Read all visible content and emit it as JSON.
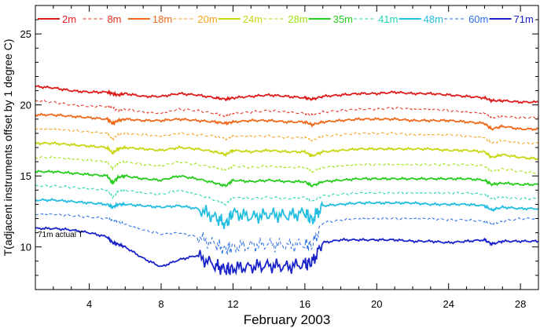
{
  "chart_data": {
    "type": "line",
    "title": "",
    "xlabel": "February 2003",
    "ylabel": "T(adjacent instruments offset by 1 degree C)",
    "xlim": [
      1,
      29
    ],
    "ylim": [
      7,
      27
    ],
    "x_ticks": [
      4,
      8,
      12,
      16,
      20,
      24,
      28
    ],
    "y_ticks": [
      10,
      15,
      20,
      25
    ],
    "grid": false,
    "legend": "top",
    "annotation": "71m actual T",
    "x": [
      1,
      2,
      3,
      4,
      5,
      5.3,
      5.6,
      6,
      7,
      8,
      9,
      10,
      11,
      11.6,
      12,
      13,
      14,
      15,
      16,
      16.4,
      17,
      18,
      19,
      20,
      21,
      22,
      23,
      24,
      25,
      26,
      26.4,
      27,
      28,
      29
    ],
    "series": [
      {
        "name": "2m",
        "color": "#dd1c1c",
        "dashed": false,
        "values": [
          21.3,
          21.2,
          21.0,
          20.9,
          20.9,
          20.8,
          20.7,
          20.8,
          20.6,
          20.6,
          20.8,
          20.7,
          20.5,
          20.4,
          20.5,
          20.6,
          20.7,
          20.6,
          20.5,
          20.4,
          20.6,
          20.7,
          20.8,
          20.8,
          20.9,
          20.8,
          20.8,
          20.7,
          20.6,
          20.5,
          20.3,
          20.3,
          20.2,
          20.2
        ]
      },
      {
        "name": "8m",
        "color": "#e3311f",
        "dashed": true,
        "values": [
          20.3,
          20.2,
          20.0,
          19.9,
          19.9,
          19.8,
          19.6,
          19.7,
          19.5,
          19.4,
          19.7,
          19.6,
          19.4,
          19.2,
          19.4,
          19.5,
          19.6,
          19.5,
          19.4,
          19.3,
          19.5,
          19.6,
          19.7,
          19.7,
          19.8,
          19.7,
          19.7,
          19.6,
          19.5,
          19.4,
          19.1,
          19.2,
          19.1,
          19.1
        ]
      },
      {
        "name": "18m",
        "color": "#ee6a1a",
        "dashed": false,
        "values": [
          19.3,
          19.3,
          19.2,
          19.1,
          19.0,
          18.7,
          18.9,
          19.0,
          18.9,
          18.9,
          19.0,
          18.9,
          18.8,
          18.7,
          18.8,
          18.9,
          18.9,
          18.8,
          18.8,
          18.6,
          18.8,
          18.9,
          19.0,
          19.0,
          19.0,
          18.9,
          18.9,
          18.9,
          18.8,
          18.7,
          18.3,
          18.5,
          18.3,
          18.3
        ]
      },
      {
        "name": "20m",
        "color": "#f5a31c",
        "dashed": true,
        "values": [
          18.3,
          18.3,
          18.2,
          18.1,
          18.0,
          17.6,
          17.9,
          18.0,
          17.9,
          17.8,
          18.0,
          17.9,
          17.8,
          17.6,
          17.8,
          17.8,
          17.8,
          17.7,
          17.7,
          17.5,
          17.8,
          17.9,
          18.0,
          18.0,
          18.0,
          17.9,
          17.9,
          17.9,
          17.8,
          17.7,
          17.3,
          17.5,
          17.3,
          17.3
        ]
      },
      {
        "name": "24m",
        "color": "#c8d614",
        "dashed": false,
        "values": [
          17.3,
          17.3,
          17.2,
          17.1,
          17.0,
          16.6,
          16.9,
          17.0,
          16.9,
          16.8,
          17.0,
          16.9,
          16.7,
          16.5,
          16.8,
          16.7,
          16.8,
          16.7,
          16.7,
          16.4,
          16.7,
          16.8,
          16.9,
          16.9,
          16.9,
          16.9,
          16.9,
          16.8,
          16.8,
          16.7,
          16.3,
          16.5,
          16.3,
          16.2
        ]
      },
      {
        "name": "28m",
        "color": "#9ee010",
        "dashed": true,
        "values": [
          16.3,
          16.3,
          16.2,
          16.1,
          16.0,
          15.5,
          15.9,
          16.0,
          15.8,
          15.7,
          16.0,
          15.8,
          15.6,
          15.4,
          15.7,
          15.6,
          15.7,
          15.6,
          15.6,
          15.3,
          15.6,
          15.7,
          15.8,
          15.8,
          15.8,
          15.8,
          15.8,
          15.8,
          15.8,
          15.7,
          15.3,
          15.5,
          15.3,
          15.2
        ]
      },
      {
        "name": "35m",
        "color": "#28cc1e",
        "dashed": false,
        "values": [
          15.3,
          15.3,
          15.2,
          15.1,
          15.0,
          14.5,
          14.9,
          15.0,
          14.8,
          14.7,
          15.0,
          14.8,
          14.5,
          14.3,
          14.7,
          14.6,
          14.7,
          14.6,
          14.6,
          14.3,
          14.6,
          14.7,
          14.8,
          14.8,
          14.8,
          14.8,
          14.8,
          14.8,
          14.8,
          14.7,
          14.4,
          14.5,
          14.4,
          14.4
        ]
      },
      {
        "name": "41m",
        "color": "#22d4b4",
        "dashed": true,
        "values": [
          14.3,
          14.3,
          14.2,
          14.1,
          14.0,
          13.5,
          13.9,
          14.0,
          13.8,
          13.7,
          14.0,
          13.7,
          13.3,
          13.0,
          13.5,
          13.4,
          13.5,
          13.4,
          13.5,
          13.2,
          13.6,
          13.7,
          13.8,
          13.8,
          13.8,
          13.8,
          13.8,
          13.8,
          13.8,
          13.7,
          13.4,
          13.5,
          13.4,
          13.4
        ]
      },
      {
        "name": "48m",
        "color": "#22bde0",
        "dashed": false,
        "values": [
          13.3,
          13.3,
          13.2,
          13.1,
          13.0,
          12.8,
          13.0,
          13.0,
          12.9,
          12.8,
          12.9,
          12.7,
          12.1,
          11.6,
          12.4,
          12.1,
          12.3,
          12.2,
          12.4,
          11.9,
          12.9,
          13.0,
          13.1,
          13.1,
          13.1,
          13.1,
          13.0,
          13.0,
          13.0,
          12.9,
          12.6,
          12.8,
          12.7,
          12.7
        ]
      },
      {
        "name": "60m",
        "color": "#2a6ee6",
        "dashed": true,
        "values": [
          12.3,
          12.3,
          12.2,
          12.1,
          12.0,
          11.9,
          11.8,
          11.6,
          11.2,
          10.9,
          11.0,
          10.7,
          10.2,
          9.8,
          10.0,
          10.1,
          10.2,
          10.1,
          10.2,
          10.1,
          11.7,
          11.9,
          12.0,
          12.0,
          12.0,
          12.0,
          12.0,
          11.9,
          11.9,
          11.8,
          11.6,
          11.8,
          12.0,
          12.0
        ]
      },
      {
        "name": "71m",
        "color": "#1a23c8",
        "dashed": false,
        "values": [
          11.3,
          11.3,
          11.2,
          11.0,
          10.7,
          10.3,
          10.2,
          10.0,
          9.2,
          8.6,
          9.1,
          9.4,
          8.7,
          8.4,
          8.5,
          8.6,
          8.7,
          8.6,
          8.8,
          8.9,
          10.3,
          10.5,
          10.5,
          10.5,
          10.5,
          10.4,
          10.4,
          10.3,
          10.4,
          10.5,
          10.2,
          10.4,
          10.4,
          10.4
        ]
      }
    ]
  }
}
